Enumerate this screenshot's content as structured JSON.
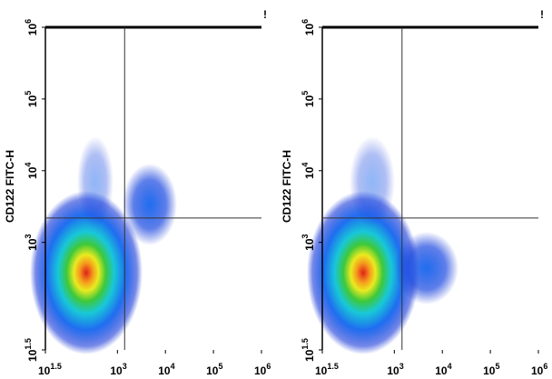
{
  "chart_data": [
    {
      "type": "density",
      "ylabel": "CD122 FITC-H",
      "flag": "!",
      "log": true,
      "xlim": [
        31.62,
        1000000
      ],
      "ylim": [
        31.62,
        1000000
      ],
      "xticks": [
        {
          "value": 31.62,
          "label": "10",
          "exponent": "1.5"
        },
        {
          "value": 1000,
          "label": "10",
          "exponent": "3"
        },
        {
          "value": 10000,
          "label": "10",
          "exponent": "4"
        },
        {
          "value": 100000,
          "label": "10",
          "exponent": "5"
        },
        {
          "value": 1000000,
          "label": "10",
          "exponent": "6"
        }
      ],
      "yticks": [
        {
          "value": 31.62,
          "label": "10",
          "exponent": "1.5"
        },
        {
          "value": 1000,
          "label": "10",
          "exponent": "3"
        },
        {
          "value": 10000,
          "label": "10",
          "exponent": "4"
        },
        {
          "value": 100000,
          "label": "10",
          "exponent": "5"
        },
        {
          "value": 1000000,
          "label": "10",
          "exponent": "6"
        }
      ],
      "gates": {
        "x": 1413,
        "y": 2188
      }
    },
    {
      "type": "density",
      "ylabel": "CD122 FITC-H",
      "flag": "!",
      "log": true,
      "xlim": [
        31.62,
        1000000
      ],
      "ylim": [
        31.62,
        1000000
      ],
      "xticks": [
        {
          "value": 31.62,
          "label": "10",
          "exponent": "1.5"
        },
        {
          "value": 1000,
          "label": "10",
          "exponent": "3"
        },
        {
          "value": 10000,
          "label": "10",
          "exponent": "4"
        },
        {
          "value": 100000,
          "label": "10",
          "exponent": "5"
        },
        {
          "value": 1000000,
          "label": "10",
          "exponent": "6"
        }
      ],
      "yticks": [
        {
          "value": 31.62,
          "label": "10",
          "exponent": "1.5"
        },
        {
          "value": 1000,
          "label": "10",
          "exponent": "3"
        },
        {
          "value": 10000,
          "label": "10",
          "exponent": "4"
        },
        {
          "value": 100000,
          "label": "10",
          "exponent": "5"
        },
        {
          "value": 1000000,
          "label": "10",
          "exponent": "6"
        }
      ],
      "gates": {
        "x": 1445,
        "y": 2188
      }
    }
  ]
}
